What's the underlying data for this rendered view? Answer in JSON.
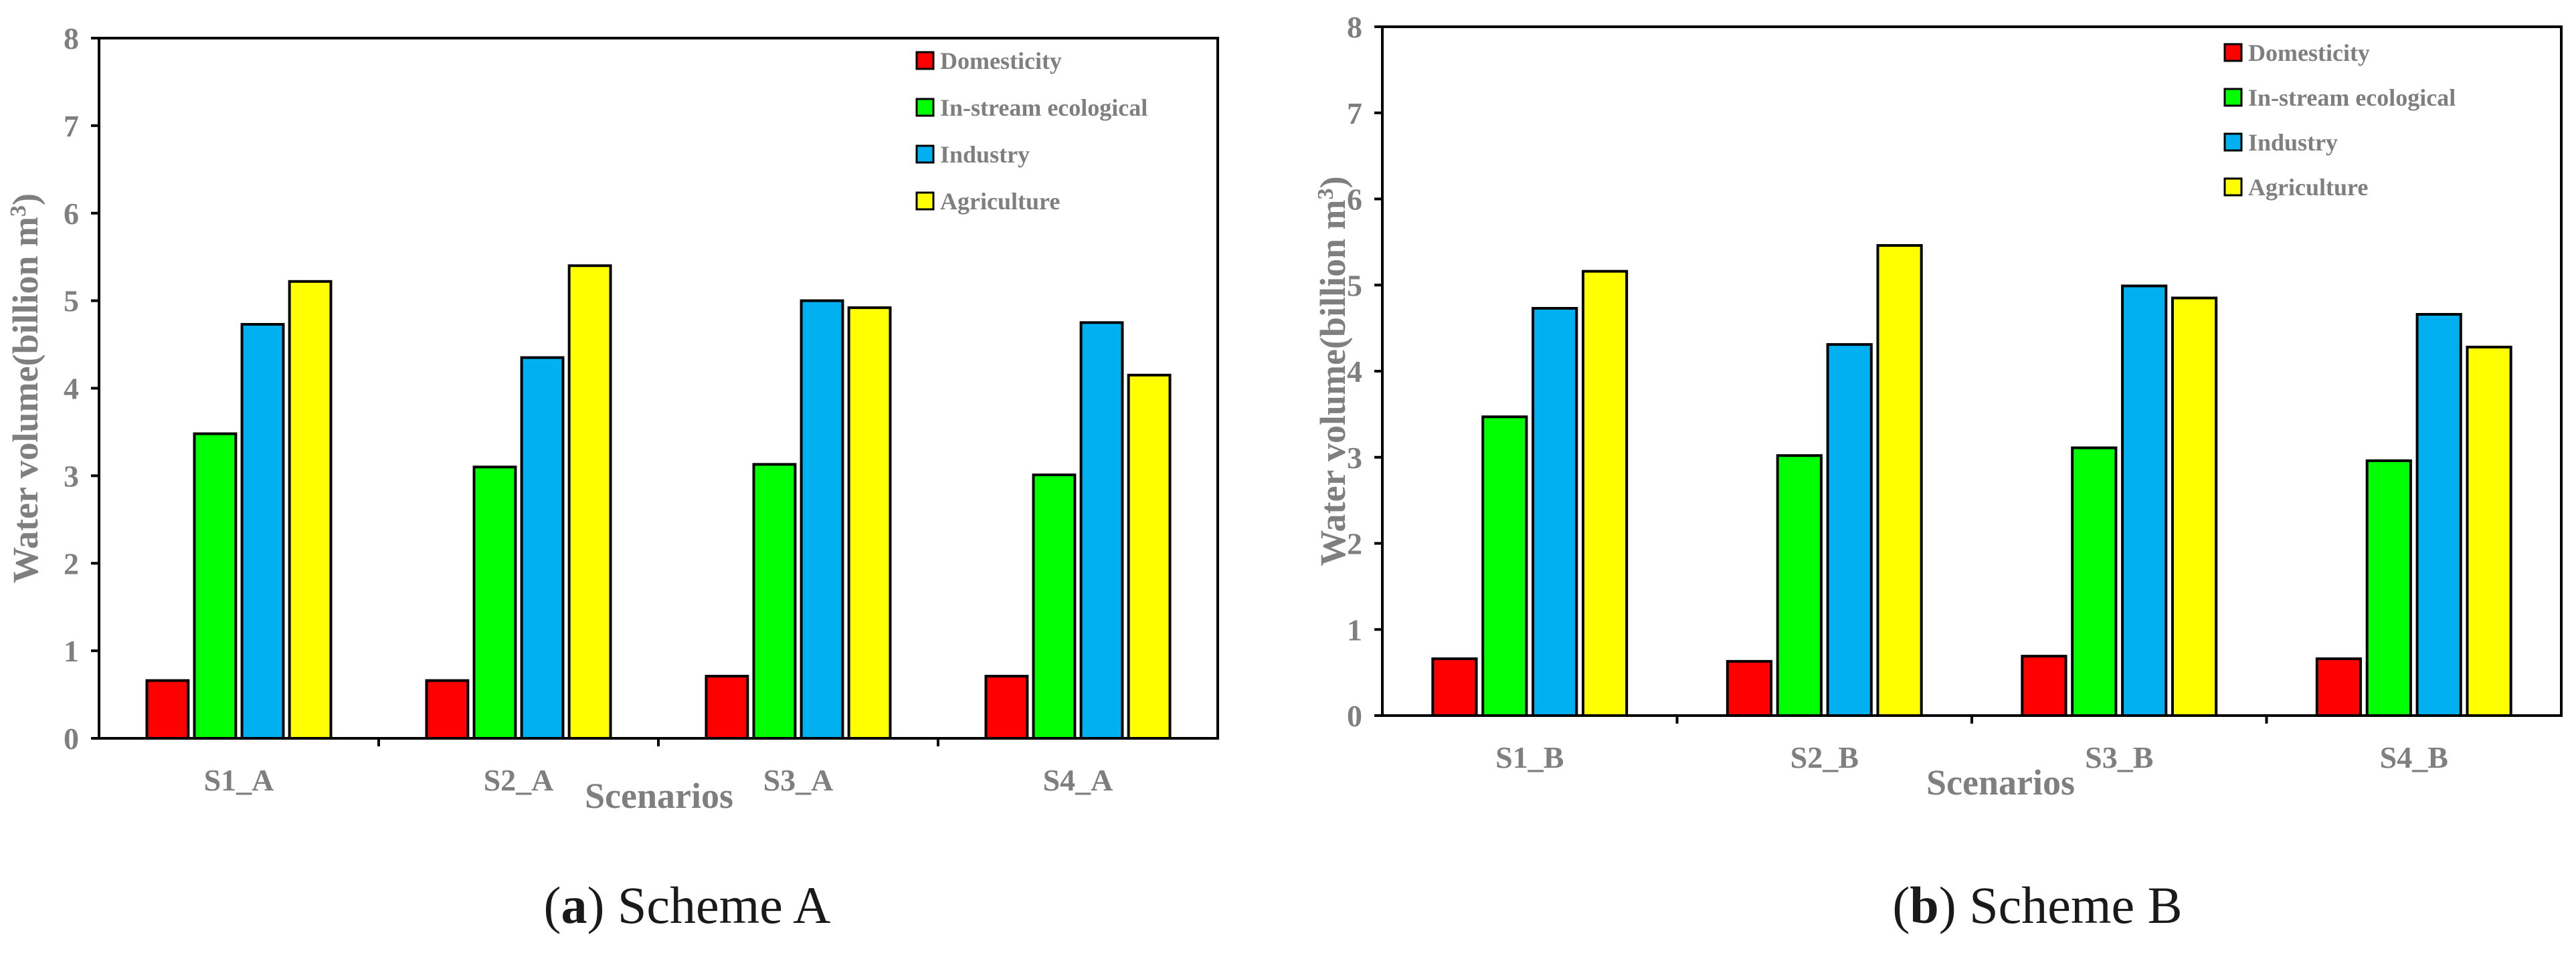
{
  "chart_data": [
    {
      "type": "bar",
      "caption_letter": "a",
      "caption_text": "Scheme A",
      "xlabel": "Scenarios",
      "ylabel": "Water volume(billion m",
      "ylabel_sup": "3",
      "ylabel_close": ")",
      "ylim": [
        0,
        8
      ],
      "yticks": [
        "0",
        "1",
        "2",
        "3",
        "4",
        "5",
        "6",
        "7",
        "8"
      ],
      "categories": [
        "S1_A",
        "S2_A",
        "S3_A",
        "S4_A"
      ],
      "legend_position": "top-right",
      "series": [
        {
          "name": "Domesticity",
          "color": "#ff0000",
          "values": [
            0.66,
            0.66,
            0.71,
            0.71
          ]
        },
        {
          "name": "In-stream ecological",
          "color": "#00ff00",
          "values": [
            3.48,
            3.1,
            3.13,
            3.01
          ]
        },
        {
          "name": "Industry",
          "color": "#00b0f0",
          "values": [
            4.73,
            4.35,
            5.0,
            4.75
          ]
        },
        {
          "name": "Agriculture",
          "color": "#ffff00",
          "values": [
            5.22,
            5.4,
            4.92,
            4.15
          ]
        }
      ]
    },
    {
      "type": "bar",
      "caption_letter": "b",
      "caption_text": "Scheme B",
      "xlabel": "Scenarios",
      "ylabel": "Water volume(billion m",
      "ylabel_sup": "3",
      "ylabel_close": ")",
      "ylim": [
        0,
        8
      ],
      "yticks": [
        "0",
        "1",
        "2",
        "3",
        "4",
        "5",
        "6",
        "7",
        "8"
      ],
      "categories": [
        "S1_B",
        "S2_B",
        "S3_B",
        "S4_B"
      ],
      "legend_position": "top-right",
      "series": [
        {
          "name": "Domesticity",
          "color": "#ff0000",
          "values": [
            0.66,
            0.63,
            0.69,
            0.66
          ]
        },
        {
          "name": "In-stream ecological",
          "color": "#00ff00",
          "values": [
            3.47,
            3.02,
            3.11,
            2.96
          ]
        },
        {
          "name": "Industry",
          "color": "#00b0f0",
          "values": [
            4.73,
            4.31,
            4.99,
            4.66
          ]
        },
        {
          "name": "Agriculture",
          "color": "#ffff00",
          "values": [
            5.16,
            5.46,
            4.85,
            4.28
          ]
        }
      ]
    }
  ]
}
